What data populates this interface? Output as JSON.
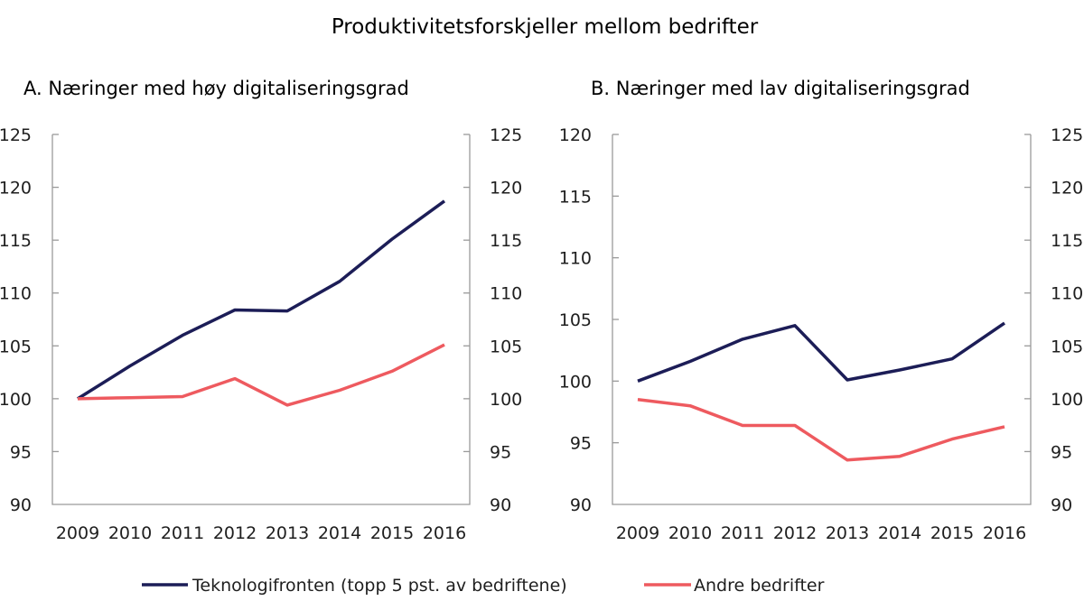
{
  "title": "Produktivitetsforskjeller mellom bedrifter",
  "colors": {
    "series_1": "#1c1d57",
    "series_2": "#ee5a5f",
    "axis": "#9a9a9a"
  },
  "legend": [
    {
      "label": "Teknologifronten (topp 5 pst. av bedriftene)",
      "series": "series_1"
    },
    {
      "label": "Andre bedrifter",
      "series": "series_2"
    }
  ],
  "chart_data": [
    {
      "type": "line",
      "title": "A.  Næringer med høy digitaliseringsgrad",
      "categories": [
        "2009",
        "2010",
        "2011",
        "2012",
        "2013",
        "2014",
        "2015",
        "2016"
      ],
      "left_axis": {
        "ylim": [
          90,
          125
        ],
        "ticks": [
          "125",
          "120",
          "115",
          "110",
          "105",
          "100",
          "95",
          "90"
        ]
      },
      "right_axis": {
        "ylim": [
          90,
          125
        ],
        "ticks": [
          "125",
          "120",
          "115",
          "110",
          "105",
          "100",
          "95",
          "90"
        ]
      },
      "series": [
        {
          "name": "Teknologifronten (topp 5 pst. av bedriftene)",
          "axis": "left",
          "values": [
            100,
            103.1,
            106.0,
            108.4,
            108.3,
            111.1,
            115.1,
            118.7
          ]
        },
        {
          "name": "Andre bedrifter",
          "axis": "left",
          "values": [
            100,
            100.1,
            100.2,
            101.9,
            99.4,
            100.8,
            102.6,
            105.1
          ]
        }
      ],
      "grid": false
    },
    {
      "type": "line",
      "title": "B.  Næringer med lav digitaliseringsgrad",
      "categories": [
        "2009",
        "2010",
        "2011",
        "2012",
        "2013",
        "2014",
        "2015",
        "2016"
      ],
      "left_axis": {
        "ylim": [
          90,
          120
        ],
        "ticks": [
          "120",
          "115",
          "110",
          "105",
          "100",
          "95",
          "90"
        ]
      },
      "right_axis": {
        "ylim": [
          90,
          125
        ],
        "ticks": [
          "125",
          "120",
          "115",
          "110",
          "105",
          "100",
          "95",
          "90"
        ]
      },
      "series": [
        {
          "name": "Teknologifronten (topp 5 pst. av bedriftene)",
          "axis": "left",
          "values": [
            100,
            101.6,
            103.4,
            104.5,
            100.1,
            100.9,
            101.8,
            104.7
          ]
        },
        {
          "name": "Andre bedrifter",
          "axis": "left",
          "values": [
            98.5,
            98.0,
            96.4,
            96.4,
            93.6,
            93.9,
            95.3,
            96.3
          ]
        }
      ],
      "grid": false
    }
  ]
}
